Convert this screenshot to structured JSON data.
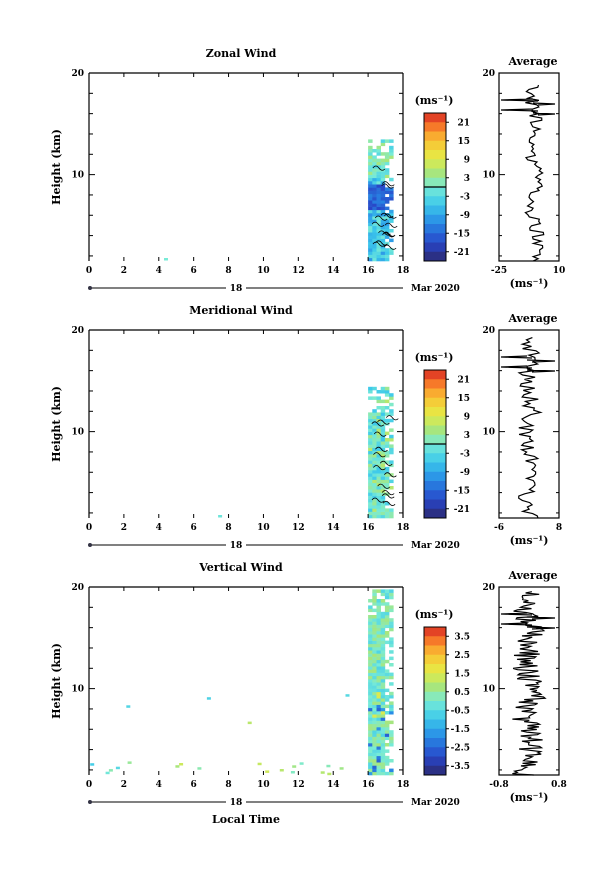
{
  "figure": {
    "time_label": "Local Time",
    "date_label": "Mar 2020",
    "date_marker": "18"
  },
  "chart_data": [
    {
      "type": "heatmap",
      "title": "Zonal Wind",
      "xlabel": "",
      "ylabel": "Height (km)",
      "x_ticks": [
        "0",
        "2",
        "4",
        "6",
        "8",
        "10",
        "12",
        "14",
        "16",
        "18"
      ],
      "y_ticks": [
        "10",
        "20"
      ],
      "xlim": [
        0,
        18
      ],
      "ylim": [
        1.5,
        20
      ],
      "data_x_range": [
        16,
        17.5
      ],
      "data_top_km": 13.5,
      "colorbar": {
        "unit": "(ms⁻¹)",
        "ticks": [
          "21",
          "15",
          "9",
          "3",
          "-3",
          "-9",
          "-15",
          "-21"
        ],
        "range": [
          -24,
          24
        ],
        "zero_line": true
      },
      "profile": {
        "title": "Average",
        "x_ticks": [
          "-25",
          "10"
        ],
        "xlim": [
          -25,
          10
        ],
        "xlabel": "(ms⁻¹)"
      }
    },
    {
      "type": "heatmap",
      "title": "Meridional Wind",
      "xlabel": "",
      "ylabel": "Height (km)",
      "x_ticks": [
        "0",
        "2",
        "4",
        "6",
        "8",
        "10",
        "12",
        "14",
        "16",
        "18"
      ],
      "y_ticks": [
        "10",
        "20"
      ],
      "xlim": [
        0,
        18
      ],
      "ylim": [
        1.5,
        20
      ],
      "data_x_range": [
        16,
        17.5
      ],
      "data_top_km": 14.5,
      "colorbar": {
        "unit": "(ms⁻¹)",
        "ticks": [
          "21",
          "15",
          "9",
          "3",
          "-3",
          "-9",
          "-15",
          "-21"
        ],
        "range": [
          -24,
          24
        ],
        "zero_line": true
      },
      "profile": {
        "title": "Average",
        "x_ticks": [
          "-6",
          "8"
        ],
        "xlim": [
          -6,
          8
        ],
        "xlabel": "(ms⁻¹)"
      }
    },
    {
      "type": "heatmap",
      "title": "Vertical Wind",
      "xlabel": "Local Time",
      "ylabel": "Height (km)",
      "x_ticks": [
        "0",
        "2",
        "4",
        "6",
        "8",
        "10",
        "12",
        "14",
        "16",
        "18"
      ],
      "y_ticks": [
        "10",
        "20"
      ],
      "xlim": [
        0,
        18
      ],
      "ylim": [
        1.5,
        20
      ],
      "data_x_range": [
        16,
        17.5
      ],
      "data_top_km": 20,
      "colorbar": {
        "unit": "(ms⁻¹)",
        "ticks": [
          "3.5",
          "2.5",
          "1.5",
          "0.5",
          "-0.5",
          "-1.5",
          "-2.5",
          "-3.5"
        ],
        "range": [
          -4,
          4
        ],
        "zero_line": false
      },
      "profile": {
        "title": "Average",
        "x_ticks": [
          "-0.8",
          "0.8"
        ],
        "xlim": [
          -0.8,
          0.8
        ],
        "xlabel": "(ms⁻¹)"
      }
    }
  ]
}
